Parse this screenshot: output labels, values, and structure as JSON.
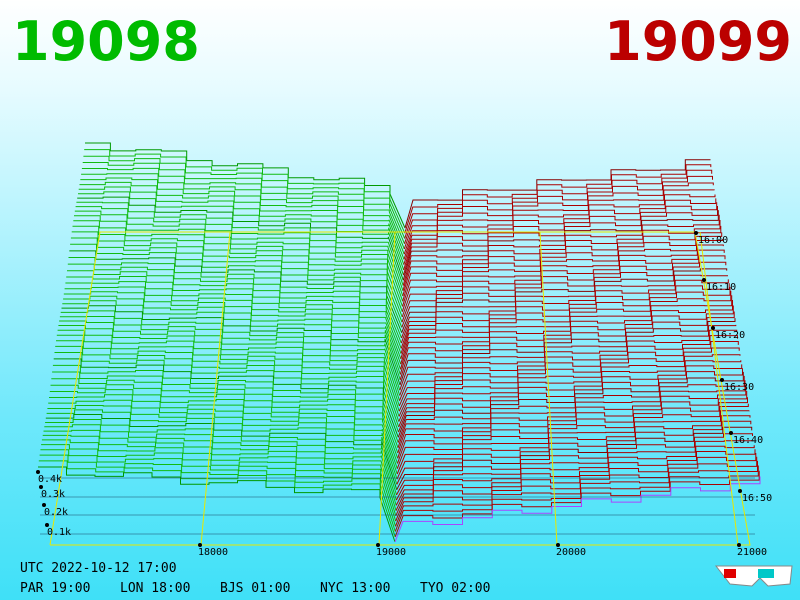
{
  "header": {
    "bid": "19098",
    "ask": "19099"
  },
  "price_axis": [
    "18000",
    "19000",
    "20000",
    "21000"
  ],
  "depth_axis": [
    "0.4k",
    "0.3k",
    "0.2k",
    "0.1k"
  ],
  "time_axis": [
    "16:00",
    "16:10",
    "16:20",
    "16:30",
    "16:40",
    "16:50"
  ],
  "footer": {
    "utc": "UTC 2022-10-12 17:00",
    "zones": [
      "PAR 19:00",
      "LON 18:00",
      "BJS 01:00",
      "NYC 13:00",
      "TYO 02:00"
    ]
  }
}
